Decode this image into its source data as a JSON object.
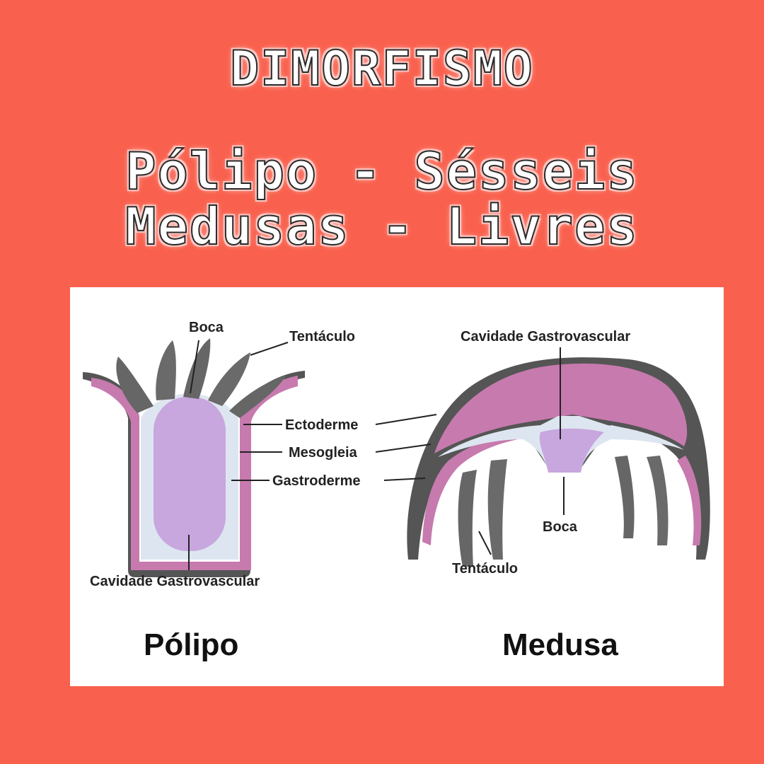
{
  "header": {
    "title": "DIMORFISMO",
    "line1": "Pólipo - Sésseis",
    "line2": "Medusas - Livres"
  },
  "polyp": {
    "name": "Pólipo",
    "labels": {
      "boca": "Boca",
      "tentaculo": "Tentáculo",
      "ectoderme": "Ectoderme",
      "mesogleia": "Mesogleia",
      "gastroderme": "Gastroderme",
      "cavidade": "Cavidade Gastrovascular"
    }
  },
  "medusa": {
    "name": "Medusa",
    "labels": {
      "cavidade": "Cavidade Gastrovascular",
      "boca": "Boca",
      "tentaculo": "Tentáculo"
    }
  },
  "colors": {
    "background": "#F9604D",
    "tissue_pink": "#C77AAE",
    "cavity_purple": "#C8A6DE",
    "gastroderm_light": "#DDE6F0",
    "ectoderm_gray": "#555555"
  }
}
